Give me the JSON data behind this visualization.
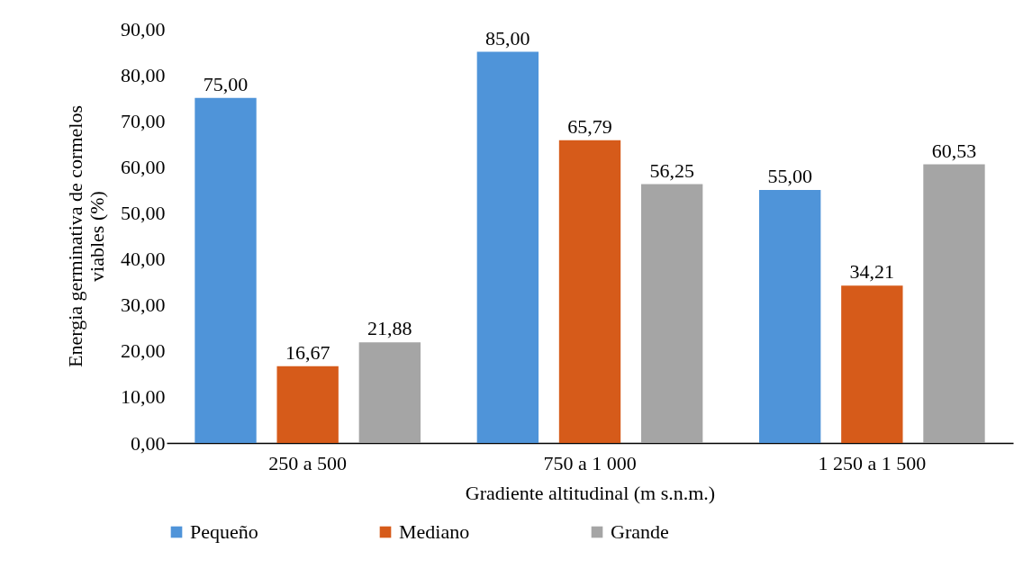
{
  "chart_data": {
    "type": "bar",
    "xlabel": "Gradiente altitudinal (m s.n.m.)",
    "ylabel": "Energia germinativa de cormelos viables (%)",
    "categories": [
      "250 a 500",
      "750 a 1 000",
      "1 250 a 1 500"
    ],
    "series": [
      {
        "name": "Pequeño",
        "color": "#4f94d9",
        "values": [
          75,
          85,
          55
        ],
        "value_labels": [
          "75,00",
          "85,00",
          "55,00"
        ]
      },
      {
        "name": "Mediano",
        "color": "#d65b1a",
        "values": [
          16.67,
          65.79,
          34.21
        ],
        "value_labels": [
          "16,67",
          "65,79",
          "34,21"
        ]
      },
      {
        "name": "Grande",
        "color": "#a5a5a5",
        "values": [
          21.88,
          56.25,
          60.53
        ],
        "value_labels": [
          "21,88",
          "56,25",
          "60,53"
        ]
      }
    ],
    "ylim": [
      0,
      90
    ],
    "yticks": [
      {
        "value": 0,
        "label": "0,00"
      },
      {
        "value": 10,
        "label": "10,00"
      },
      {
        "value": 20,
        "label": "20,00"
      },
      {
        "value": 30,
        "label": "30,00"
      },
      {
        "value": 40,
        "label": "40,00"
      },
      {
        "value": 50,
        "label": "50,00"
      },
      {
        "value": 60,
        "label": "60,00"
      },
      {
        "value": 70,
        "label": "70,00"
      },
      {
        "value": 80,
        "label": "80,00"
      },
      {
        "value": 90,
        "label": "90,00"
      }
    ],
    "legend": "bottom",
    "grid": false
  }
}
